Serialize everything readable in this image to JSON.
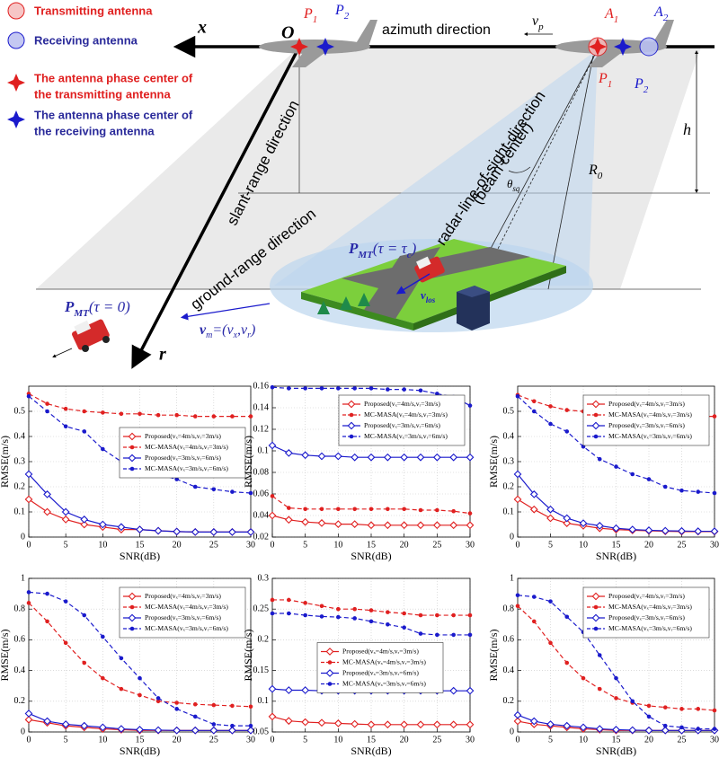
{
  "diagram": {
    "legend_items": [
      {
        "lines": [
          "Transmitting antenna"
        ]
      },
      {
        "lines": [
          "Receiving antenna"
        ]
      },
      {
        "lines": [
          "The antenna phase center of",
          "the transmitting antenna"
        ]
      },
      {
        "lines": [
          "The antenna phase center of",
          "the receiving antenna"
        ]
      }
    ],
    "x_axis": "x",
    "origin": "O",
    "azimuth": "azimuth direction",
    "r_axis": "r",
    "labels": {
      "p1_left": {
        "text": "P",
        "sub": "1"
      },
      "p2_left": {
        "text": "P",
        "sub": "2"
      },
      "vp": {
        "text": "v",
        "sub": "p"
      },
      "a1": {
        "text": "A",
        "sub": "1"
      },
      "a2": {
        "text": "A",
        "sub": "2"
      },
      "p1_right": {
        "text": "P",
        "sub": "1"
      },
      "p2_right": {
        "text": "P",
        "sub": "2"
      },
      "h": {
        "text": "h"
      },
      "r0": {
        "text": "R",
        "sub": "0"
      },
      "theta": {
        "text": "θ",
        "sub": "sq"
      },
      "vlos": {
        "text": "v",
        "sub": "los"
      }
    },
    "slant_range": "slant-range direction",
    "ground_range": "ground-range direction",
    "los": [
      "radar-line-of-sight-direction",
      "(beam center)"
    ],
    "pmt_c": {
      "main": "P",
      "sub": "MT",
      "rest": "(τ = τ",
      "rest_sub": "c",
      "end": ")"
    },
    "pmt_0": {
      "main": "P",
      "sub": "MT",
      "rest": "(τ = 0)"
    },
    "vm": {
      "main": "v",
      "sub": "m",
      "rest": "=(v",
      "sub2": "x",
      "mid": ",v",
      "sub3": "r",
      "end": ")"
    }
  },
  "chart_data": [
    {
      "type": "line",
      "xlabel": "SNR(dB)",
      "ylabel": "RMSE(m/s)",
      "grid": true,
      "legend": "center right",
      "x": [
        0,
        2.5,
        5,
        7.5,
        10,
        12.5,
        15,
        17.5,
        20,
        22.5,
        25,
        27.5,
        30
      ],
      "xlim": [
        0,
        30
      ],
      "xticks": [
        0,
        5,
        10,
        15,
        20,
        25,
        30
      ],
      "ylim": [
        0,
        0.6
      ],
      "yticks": [
        0,
        0.1,
        0.2,
        0.3,
        0.4,
        0.5
      ],
      "series": [
        {
          "name": "Proposed(vₓ=4m/s,vᵣ=3m/s)",
          "color": "#e02020",
          "marker": "diamond",
          "linestyle": "solid",
          "values": [
            0.15,
            0.1,
            0.07,
            0.05,
            0.04,
            0.03,
            0.03,
            0.025,
            0.022,
            0.02,
            0.02,
            0.02,
            0.02
          ]
        },
        {
          "name": "MC-MASA(vₓ=4m/s,vᵣ=3m/s)",
          "color": "#e02020",
          "marker": "circle",
          "linestyle": "dashed",
          "values": [
            0.57,
            0.53,
            0.51,
            0.5,
            0.495,
            0.49,
            0.49,
            0.485,
            0.485,
            0.48,
            0.48,
            0.48,
            0.48
          ]
        },
        {
          "name": "Proposed(vₓ=3m/s,vᵣ=6m/s)",
          "color": "#1a1acc",
          "marker": "diamond",
          "linestyle": "solid",
          "values": [
            0.25,
            0.17,
            0.1,
            0.07,
            0.05,
            0.04,
            0.03,
            0.025,
            0.022,
            0.02,
            0.02,
            0.02,
            0.02
          ]
        },
        {
          "name": "MC-MASA(vₓ=3m/s,vᵣ=6m/s)",
          "color": "#1a1acc",
          "marker": "circle",
          "linestyle": "dashed",
          "values": [
            0.56,
            0.5,
            0.44,
            0.42,
            0.35,
            0.3,
            0.28,
            0.25,
            0.23,
            0.2,
            0.19,
            0.18,
            0.175
          ]
        }
      ]
    },
    {
      "type": "line",
      "xlabel": "SNR(dB)",
      "ylabel": "RMSE(m/s)",
      "grid": true,
      "legend": "upper right",
      "x": [
        0,
        2.5,
        5,
        7.5,
        10,
        12.5,
        15,
        17.5,
        20,
        22.5,
        25,
        27.5,
        30
      ],
      "xlim": [
        0,
        30
      ],
      "xticks": [
        0,
        5,
        10,
        15,
        20,
        25,
        30
      ],
      "ylim": [
        0.02,
        0.16
      ],
      "yticks": [
        0.02,
        0.04,
        0.06,
        0.08,
        0.1,
        0.12,
        0.14,
        0.16
      ],
      "series": [
        {
          "name": "Proposed(vₓ=4m/s,vᵣ=3m/s)",
          "color": "#e02020",
          "marker": "diamond",
          "linestyle": "solid",
          "values": [
            0.04,
            0.036,
            0.034,
            0.033,
            0.032,
            0.032,
            0.031,
            0.031,
            0.031,
            0.031,
            0.031,
            0.031,
            0.031
          ]
        },
        {
          "name": "MC-MASA(vₓ=4m/s,vᵣ=3m/s)",
          "color": "#e02020",
          "marker": "circle",
          "linestyle": "dashed",
          "values": [
            0.058,
            0.047,
            0.046,
            0.046,
            0.046,
            0.046,
            0.046,
            0.046,
            0.046,
            0.045,
            0.045,
            0.044,
            0.042
          ]
        },
        {
          "name": "Proposed(vₓ=3m/s,vᵣ=6m/s)",
          "color": "#1a1acc",
          "marker": "diamond",
          "linestyle": "solid",
          "values": [
            0.105,
            0.098,
            0.096,
            0.095,
            0.095,
            0.094,
            0.094,
            0.094,
            0.094,
            0.094,
            0.094,
            0.094,
            0.094
          ]
        },
        {
          "name": "MC-MASA(vₓ=3m/s,vᵣ=6m/s)",
          "color": "#1a1acc",
          "marker": "circle",
          "linestyle": "dashed",
          "values": [
            0.159,
            0.158,
            0.158,
            0.158,
            0.158,
            0.158,
            0.158,
            0.157,
            0.157,
            0.156,
            0.153,
            0.15,
            0.142
          ]
        }
      ]
    },
    {
      "type": "line",
      "xlabel": "SNR(dB)",
      "ylabel": "RMSE(m/s)",
      "grid": true,
      "legend": "upper right",
      "x": [
        0,
        2.5,
        5,
        7.5,
        10,
        12.5,
        15,
        17.5,
        20,
        22.5,
        25,
        27.5,
        30
      ],
      "xlim": [
        0,
        30
      ],
      "xticks": [
        0,
        5,
        10,
        15,
        20,
        25,
        30
      ],
      "ylim": [
        0,
        0.6
      ],
      "yticks": [
        0,
        0.1,
        0.2,
        0.3,
        0.4,
        0.5
      ],
      "series": [
        {
          "name": "Proposed(vₓ=4m/s,vᵣ=3m/s)",
          "color": "#e02020",
          "marker": "diamond",
          "linestyle": "solid",
          "values": [
            0.15,
            0.11,
            0.075,
            0.055,
            0.045,
            0.035,
            0.03,
            0.027,
            0.025,
            0.023,
            0.022,
            0.022,
            0.022
          ]
        },
        {
          "name": "MC-MASA(vₓ=4m/s,vᵣ=3m/s)",
          "color": "#e02020",
          "marker": "circle",
          "linestyle": "dashed",
          "values": [
            0.565,
            0.54,
            0.52,
            0.505,
            0.5,
            0.495,
            0.49,
            0.485,
            0.485,
            0.48,
            0.48,
            0.48,
            0.48
          ]
        },
        {
          "name": "Proposed(vₓ=3m/s,vᵣ=6m/s)",
          "color": "#1a1acc",
          "marker": "diamond",
          "linestyle": "solid",
          "values": [
            0.25,
            0.17,
            0.11,
            0.075,
            0.055,
            0.045,
            0.035,
            0.03,
            0.027,
            0.025,
            0.024,
            0.023,
            0.023
          ]
        },
        {
          "name": "MC-MASA(vₓ=3m/s,vᵣ=6m/s)",
          "color": "#1a1acc",
          "marker": "circle",
          "linestyle": "dashed",
          "values": [
            0.56,
            0.5,
            0.45,
            0.42,
            0.36,
            0.31,
            0.28,
            0.25,
            0.23,
            0.2,
            0.185,
            0.18,
            0.175
          ]
        }
      ]
    },
    {
      "type": "line",
      "xlabel": "SNR(dB)",
      "ylabel": "RMSE(m/s)",
      "grid": true,
      "legend": "upper right",
      "x": [
        0,
        2.5,
        5,
        7.5,
        10,
        12.5,
        15,
        17.5,
        20,
        22.5,
        25,
        27.5,
        30
      ],
      "xlim": [
        0,
        30
      ],
      "xticks": [
        0,
        5,
        10,
        15,
        20,
        25,
        30
      ],
      "ylim": [
        0,
        1
      ],
      "yticks": [
        0,
        0.2,
        0.4,
        0.6,
        0.8,
        1
      ],
      "series": [
        {
          "name": "Proposed(vₓ=4m/s,vᵣ=3m/s)",
          "color": "#e02020",
          "marker": "diamond",
          "linestyle": "solid",
          "values": [
            0.08,
            0.06,
            0.04,
            0.03,
            0.02,
            0.015,
            0.01,
            0.01,
            0.01,
            0.01,
            0.01,
            0.01,
            0.01
          ]
        },
        {
          "name": "MC-MASA(vₓ=4m/s,vᵣ=3m/s)",
          "color": "#e02020",
          "marker": "circle",
          "linestyle": "dashed",
          "values": [
            0.84,
            0.72,
            0.58,
            0.45,
            0.35,
            0.28,
            0.24,
            0.2,
            0.19,
            0.18,
            0.175,
            0.17,
            0.165
          ]
        },
        {
          "name": "Proposed(vₓ=3m/s,vᵣ=6m/s)",
          "color": "#1a1acc",
          "marker": "diamond",
          "linestyle": "solid",
          "values": [
            0.12,
            0.07,
            0.05,
            0.04,
            0.03,
            0.02,
            0.015,
            0.012,
            0.01,
            0.01,
            0.01,
            0.01,
            0.01
          ]
        },
        {
          "name": "MC-MASA(vₓ=3m/s,vᵣ=6m/s)",
          "color": "#1a1acc",
          "marker": "circle",
          "linestyle": "dashed",
          "values": [
            0.91,
            0.9,
            0.85,
            0.76,
            0.62,
            0.48,
            0.35,
            0.22,
            0.15,
            0.1,
            0.05,
            0.04,
            0.04
          ]
        }
      ]
    },
    {
      "type": "line",
      "xlabel": "SNR(dB)",
      "ylabel": "RMSE(m/s)",
      "grid": true,
      "legend": "center",
      "x": [
        0,
        2.5,
        5,
        7.5,
        10,
        12.5,
        15,
        17.5,
        20,
        22.5,
        25,
        27.5,
        30
      ],
      "xlim": [
        0,
        30
      ],
      "xticks": [
        0,
        5,
        10,
        15,
        20,
        25,
        30
      ],
      "ylim": [
        0.05,
        0.3
      ],
      "yticks": [
        0.05,
        0.1,
        0.15,
        0.2,
        0.25,
        0.3
      ],
      "series": [
        {
          "name": "Proposed(vₓ=4m/s,vᵣ=3m/s)",
          "color": "#e02020",
          "marker": "diamond",
          "linestyle": "solid",
          "values": [
            0.075,
            0.068,
            0.066,
            0.065,
            0.064,
            0.063,
            0.062,
            0.062,
            0.062,
            0.062,
            0.062,
            0.062,
            0.062
          ]
        },
        {
          "name": "MC-MASA(vₓ=4m/s,vᵣ=3m/s)",
          "color": "#e02020",
          "marker": "circle",
          "linestyle": "dashed",
          "values": [
            0.265,
            0.265,
            0.26,
            0.255,
            0.25,
            0.25,
            0.248,
            0.245,
            0.243,
            0.24,
            0.24,
            0.24,
            0.24
          ]
        },
        {
          "name": "Proposed(vₓ=3m/s,vᵣ=6m/s)",
          "color": "#1a1acc",
          "marker": "diamond",
          "linestyle": "solid",
          "values": [
            0.12,
            0.118,
            0.118,
            0.117,
            0.117,
            0.117,
            0.117,
            0.117,
            0.117,
            0.117,
            0.117,
            0.117,
            0.117
          ]
        },
        {
          "name": "MC-MASA(vₓ=3m/s,vᵣ=6m/s)",
          "color": "#1a1acc",
          "marker": "circle",
          "linestyle": "dashed",
          "values": [
            0.243,
            0.243,
            0.24,
            0.238,
            0.237,
            0.235,
            0.23,
            0.225,
            0.22,
            0.21,
            0.208,
            0.208,
            0.208
          ]
        }
      ]
    },
    {
      "type": "line",
      "xlabel": "SNR(dB)",
      "ylabel": "RMSE(m/s)",
      "grid": true,
      "legend": "upper right",
      "x": [
        0,
        2.5,
        5,
        7.5,
        10,
        12.5,
        15,
        17.5,
        20,
        22.5,
        25,
        27.5,
        30
      ],
      "xlim": [
        0,
        30
      ],
      "xticks": [
        0,
        5,
        10,
        15,
        20,
        25,
        30
      ],
      "ylim": [
        0,
        1
      ],
      "yticks": [
        0,
        0.2,
        0.4,
        0.6,
        0.8,
        1
      ],
      "series": [
        {
          "name": "Proposed(vₓ=4m/s,vᵣ=3m/s)",
          "color": "#e02020",
          "marker": "diamond",
          "linestyle": "solid",
          "values": [
            0.07,
            0.05,
            0.04,
            0.03,
            0.02,
            0.015,
            0.01,
            0.01,
            0.01,
            0.01,
            0.01,
            0.01,
            0.01
          ]
        },
        {
          "name": "MC-MASA(vₓ=4m/s,vᵣ=3m/s)",
          "color": "#e02020",
          "marker": "circle",
          "linestyle": "dashed",
          "values": [
            0.82,
            0.72,
            0.58,
            0.45,
            0.35,
            0.28,
            0.22,
            0.19,
            0.17,
            0.16,
            0.15,
            0.15,
            0.14
          ]
        },
        {
          "name": "Proposed(vₓ=3m/s,vᵣ=6m/s)",
          "color": "#1a1acc",
          "marker": "diamond",
          "linestyle": "solid",
          "values": [
            0.11,
            0.07,
            0.05,
            0.04,
            0.03,
            0.02,
            0.015,
            0.012,
            0.01,
            0.01,
            0.01,
            0.01,
            0.01
          ]
        },
        {
          "name": "MC-MASA(vₓ=3m/s,vᵣ=6m/s)",
          "color": "#1a1acc",
          "marker": "circle",
          "linestyle": "dashed",
          "values": [
            0.89,
            0.88,
            0.85,
            0.75,
            0.65,
            0.5,
            0.35,
            0.2,
            0.1,
            0.04,
            0.03,
            0.02,
            0.02
          ]
        }
      ]
    }
  ]
}
